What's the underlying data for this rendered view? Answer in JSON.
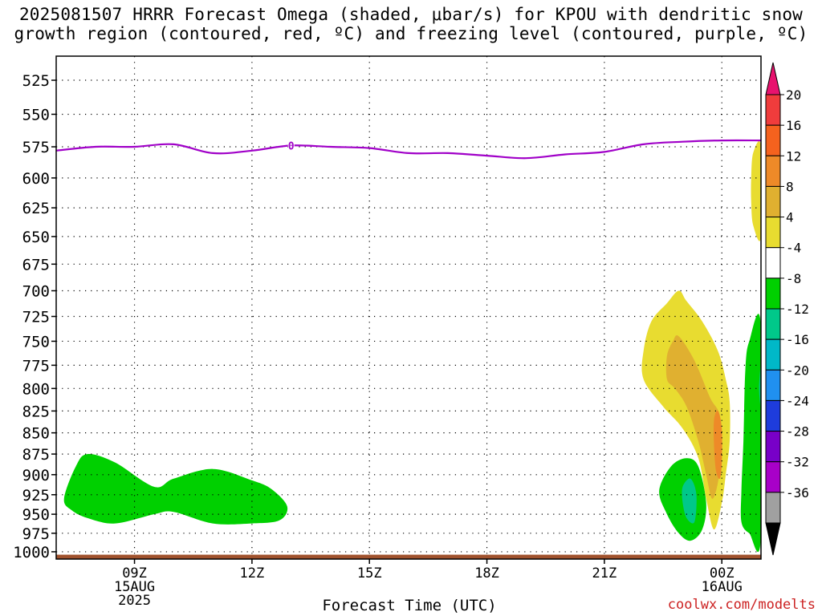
{
  "title_line1": "2025081507 HRRR Forecast Omega (shaded, μbar/s) for KPOU with dendritic snow",
  "title_line2": "growth region (contoured, red, ºC) and freezing level (contoured, purple, ºC)",
  "credit": "coolwx.com/modelts",
  "chart_data": {
    "type": "heatmap",
    "xlabel": "Forecast Time (UTC)",
    "ylabel": "",
    "x_range": [
      "2025-08-15T07:00Z",
      "2025-08-16T01:00Z"
    ],
    "y_range_hpa": [
      1010,
      508
    ],
    "y_inverted": true,
    "y_ticks": [
      525,
      550,
      575,
      600,
      625,
      650,
      675,
      700,
      725,
      750,
      775,
      800,
      825,
      850,
      875,
      900,
      925,
      950,
      975,
      1000
    ],
    "x_ticks": [
      {
        "hour": 9,
        "label": "09Z",
        "date": "15AUG",
        "year": "2025"
      },
      {
        "hour": 12,
        "label": "12Z",
        "date": "",
        "year": ""
      },
      {
        "hour": 15,
        "label": "15Z",
        "date": "",
        "year": ""
      },
      {
        "hour": 18,
        "label": "18Z",
        "date": "",
        "year": ""
      },
      {
        "hour": 21,
        "label": "21Z",
        "date": "",
        "year": ""
      },
      {
        "hour": 24,
        "label": "00Z",
        "date": "16AUG",
        "year": ""
      }
    ],
    "grid": true,
    "colorbar": {
      "labels": [
        "20",
        "16",
        "12",
        "8",
        "4",
        "-4",
        "-8",
        "-12",
        "-16",
        "-20",
        "-24",
        "-28",
        "-32",
        "-36"
      ],
      "colors": [
        "#e8126e",
        "#f03c3c",
        "#f5621e",
        "#ee8a28",
        "#e0b030",
        "#e8dc30",
        "#ffffff",
        "#00d000",
        "#00c88a",
        "#00b8c8",
        "#2090f0",
        "#1e3cdc",
        "#7800c8",
        "#a800c8",
        "#a0a0a0",
        "#000000"
      ]
    },
    "freezing_level": {
      "label": "0",
      "color": "#a000c8",
      "points": [
        [
          7,
          578
        ],
        [
          8,
          575
        ],
        [
          9,
          575
        ],
        [
          10,
          573
        ],
        [
          11,
          580
        ],
        [
          12,
          578
        ],
        [
          13,
          574
        ],
        [
          14,
          575
        ],
        [
          15,
          576
        ],
        [
          16,
          580
        ],
        [
          17,
          580
        ],
        [
          18,
          582
        ],
        [
          19,
          584
        ],
        [
          20,
          581
        ],
        [
          21,
          579
        ],
        [
          22,
          573
        ],
        [
          23,
          571
        ],
        [
          24,
          570
        ],
        [
          25,
          570
        ]
      ],
      "label_hour": 13
    },
    "omega_regions": [
      {
        "level": -6,
        "color": "#00d000",
        "points": [
          [
            7.2,
            930
          ],
          [
            7.5,
            890
          ],
          [
            7.8,
            875
          ],
          [
            8.5,
            885
          ],
          [
            9.5,
            915
          ],
          [
            10,
            905
          ],
          [
            11,
            893
          ],
          [
            12,
            907
          ],
          [
            12.5,
            918
          ],
          [
            12.9,
            940
          ],
          [
            12.7,
            958
          ],
          [
            12,
            962
          ],
          [
            11,
            962
          ],
          [
            10,
            947
          ],
          [
            9.5,
            950
          ],
          [
            8.5,
            962
          ],
          [
            7.8,
            955
          ],
          [
            7.4,
            945
          ]
        ]
      },
      {
        "level": -6,
        "color": "#00d000",
        "points": [
          [
            22.4,
            920
          ],
          [
            22.7,
            890
          ],
          [
            23.1,
            880
          ],
          [
            23.4,
            890
          ],
          [
            23.6,
            935
          ],
          [
            23.5,
            970
          ],
          [
            23.2,
            985
          ],
          [
            22.9,
            975
          ],
          [
            22.6,
            950
          ]
        ]
      },
      {
        "level": -10,
        "color": "#00c88a",
        "points": [
          [
            23.0,
            915
          ],
          [
            23.2,
            905
          ],
          [
            23.35,
            925
          ],
          [
            23.3,
            960
          ],
          [
            23.1,
            955
          ],
          [
            23.0,
            935
          ]
        ]
      },
      {
        "level": -6,
        "color": "#00d000",
        "points": [
          [
            24.5,
            920
          ],
          [
            24.55,
            860
          ],
          [
            24.6,
            780
          ],
          [
            24.7,
            750
          ],
          [
            25,
            735
          ],
          [
            25,
            980
          ],
          [
            24.7,
            975
          ],
          [
            24.5,
            960
          ]
        ]
      },
      {
        "level": -10,
        "color": "#00c88a",
        "points": [
          [
            24.95,
            800
          ],
          [
            25,
            775
          ],
          [
            25,
            820
          ]
        ]
      },
      {
        "level": 6,
        "color": "#e8dc30",
        "points": [
          [
            22.0,
            760
          ],
          [
            22.2,
            730
          ],
          [
            22.6,
            712
          ],
          [
            22.9,
            700
          ],
          [
            23.1,
            710
          ],
          [
            23.5,
            730
          ],
          [
            23.9,
            760
          ],
          [
            24.1,
            790
          ],
          [
            24.2,
            815
          ],
          [
            24.2,
            860
          ],
          [
            24.1,
            900
          ],
          [
            24.0,
            935
          ],
          [
            23.8,
            970
          ],
          [
            23.6,
            930
          ],
          [
            23.4,
            880
          ],
          [
            23.0,
            845
          ],
          [
            22.5,
            820
          ],
          [
            22.0,
            790
          ]
        ]
      },
      {
        "level": 10,
        "color": "#e0b030",
        "points": [
          [
            22.6,
            790
          ],
          [
            22.6,
            765
          ],
          [
            22.75,
            750
          ],
          [
            22.9,
            745
          ],
          [
            23.3,
            770
          ],
          [
            23.7,
            810
          ],
          [
            23.95,
            830
          ],
          [
            24.0,
            870
          ],
          [
            23.9,
            910
          ],
          [
            23.75,
            930
          ],
          [
            23.6,
            900
          ],
          [
            23.4,
            860
          ],
          [
            23.1,
            820
          ],
          [
            22.8,
            800
          ]
        ]
      },
      {
        "level": 14,
        "color": "#ee8a28",
        "points": [
          [
            23.8,
            835
          ],
          [
            23.9,
            825
          ],
          [
            24.0,
            845
          ],
          [
            24.0,
            885
          ],
          [
            23.95,
            905
          ],
          [
            23.85,
            895
          ],
          [
            23.8,
            865
          ]
        ]
      },
      {
        "level": 6,
        "color": "#e8dc30",
        "points": [
          [
            24.75,
            600
          ],
          [
            24.8,
            580
          ],
          [
            25,
            575
          ],
          [
            25,
            650
          ],
          [
            24.8,
            640
          ],
          [
            24.75,
            620
          ]
        ]
      }
    ],
    "surface_band": {
      "color": "#a0522d",
      "level_top": 1004,
      "level_bottom": 1010
    }
  }
}
